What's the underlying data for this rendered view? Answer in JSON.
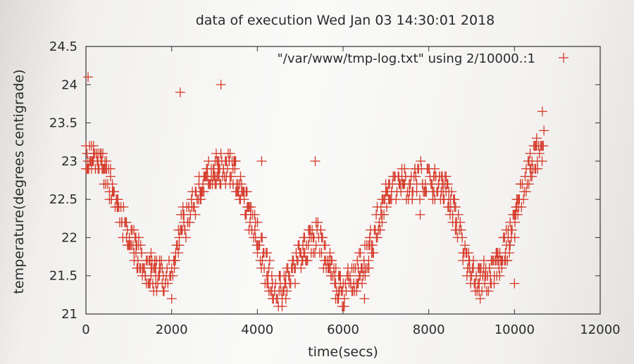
{
  "chart_data": {
    "type": "scatter",
    "title": "data of execution Wed Jan 03 14:30:01 2018",
    "xlabel": "time(secs)",
    "ylabel": "temperature(degrees centigrade)",
    "xlim": [
      0,
      12000
    ],
    "ylim": [
      21,
      24.5
    ],
    "x_ticks": [
      0,
      2000,
      4000,
      6000,
      8000,
      10000,
      12000
    ],
    "x_tick_labels": [
      "0",
      "2000",
      "4000",
      "6000",
      "8000",
      "10000",
      "12000"
    ],
    "y_ticks": [
      21,
      21.5,
      22,
      22.5,
      23,
      23.5,
      24,
      24.5
    ],
    "y_tick_labels": [
      "21",
      "21.5",
      "22",
      "22.5",
      "23",
      "23.5",
      "24",
      "24.5"
    ],
    "grid": false,
    "legend_position": "top-right",
    "series": [
      {
        "name": "\"/var/www/tmp-log.txt\" using 2/10000.:1",
        "color": "#d63a2a",
        "marker": "plus",
        "trend_x": [
          0,
          200,
          400,
          600,
          800,
          1000,
          1200,
          1400,
          1600,
          1800,
          2000,
          2200,
          2400,
          2600,
          2800,
          3000,
          3200,
          3400,
          3600,
          3800,
          4000,
          4200,
          4400,
          4600,
          4800,
          5000,
          5200,
          5400,
          5600,
          5800,
          6000,
          6200,
          6400,
          6600,
          6800,
          7000,
          7200,
          7400,
          7600,
          7800,
          8000,
          8200,
          8400,
          8600,
          8800,
          9000,
          9200,
          9400,
          9600,
          9800,
          10000,
          10200,
          10400,
          10600,
          10700
        ],
        "trend_y": [
          23.0,
          23.1,
          22.9,
          22.6,
          22.3,
          22.0,
          21.8,
          21.6,
          21.55,
          21.5,
          21.6,
          22.1,
          22.3,
          22.55,
          22.75,
          22.85,
          22.9,
          22.9,
          22.7,
          22.35,
          22.0,
          21.6,
          21.35,
          21.3,
          21.55,
          21.75,
          21.95,
          22.05,
          21.7,
          21.45,
          21.3,
          21.45,
          21.6,
          21.8,
          22.2,
          22.55,
          22.65,
          22.7,
          22.7,
          22.75,
          22.75,
          22.7,
          22.65,
          22.3,
          21.85,
          21.55,
          21.45,
          21.5,
          21.65,
          21.85,
          22.2,
          22.7,
          23.0,
          23.15,
          23.3
        ],
        "outliers": [
          {
            "x": 50,
            "y": 24.1
          },
          {
            "x": 2200,
            "y": 23.9
          },
          {
            "x": 3150,
            "y": 24.0
          },
          {
            "x": 5350,
            "y": 23.0
          },
          {
            "x": 4100,
            "y": 23.0
          },
          {
            "x": 2000,
            "y": 21.2
          },
          {
            "x": 9200,
            "y": 21.2
          },
          {
            "x": 7800,
            "y": 22.3
          },
          {
            "x": 10650,
            "y": 23.65
          },
          {
            "x": 6500,
            "y": 21.2
          },
          {
            "x": 10000,
            "y": 21.4
          }
        ]
      }
    ]
  }
}
